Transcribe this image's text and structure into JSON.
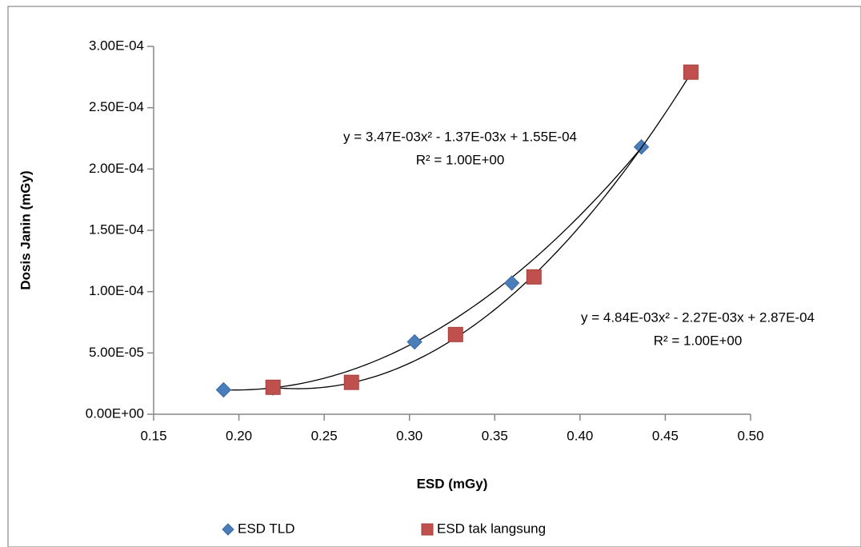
{
  "chart_data": {
    "type": "scatter",
    "x_label": "ESD (mGy)",
    "y_label": "Dosis Janin (mGy)",
    "xlim": [
      0.15,
      0.5
    ],
    "xticks": [
      0.15,
      {
        "value": 0.2,
        "label": "0.20"
      },
      0.25,
      {
        "value": 0.3,
        "label": "0.30"
      },
      0.35,
      {
        "value": 0.4,
        "label": "0.40"
      },
      0.45,
      {
        "value": 0.5,
        "label": "0.50"
      }
    ],
    "ylim": [
      0,
      0.0003
    ],
    "yticks": [
      {
        "value": 0,
        "label": "0.00E+00"
      },
      {
        "value": 5e-05,
        "label": "5.00E-05"
      },
      {
        "value": 0.0001,
        "label": "1.00E-04"
      },
      {
        "value": 0.00015,
        "label": "1.50E-04"
      },
      {
        "value": 0.0002,
        "label": "2.00E-04"
      },
      {
        "value": 0.00025,
        "label": "2.50E-04"
      },
      {
        "value": 0.0003,
        "label": "3.00E-04"
      }
    ],
    "grid": false,
    "legend": "bottom",
    "series": [
      {
        "name": "ESD TLD",
        "color": "#4a7ebb",
        "marker": "diamond",
        "x": [
          0.191,
          0.22,
          0.303,
          0.36,
          0.436
        ],
        "values": [
          1.99e-05,
          2.15e-05,
          5.9e-05,
          0.000107,
          0.000218
        ],
        "trendline": {
          "coefficients": [
            0.00347,
            -0.00137,
            0.000155
          ],
          "equation": "y = 3.47E-03x² - 1.37E-03x + 1.55E-04",
          "r2": "R² = 1.00E+00"
        }
      },
      {
        "name": "ESD tak langsung",
        "color": "#c0504d",
        "marker": "square",
        "x": [
          0.22,
          0.266,
          0.327,
          0.373,
          0.465
        ],
        "values": [
          2.2e-05,
          2.6e-05,
          6.5e-05,
          0.000112,
          0.000279
        ],
        "trendline": {
          "coefficients": [
            0.00484,
            -0.00227,
            0.000287
          ],
          "equation": "y = 4.84E-03x² - 2.27E-03x + 2.87E-04",
          "r2": "R² = 1.00E+00"
        }
      }
    ]
  }
}
